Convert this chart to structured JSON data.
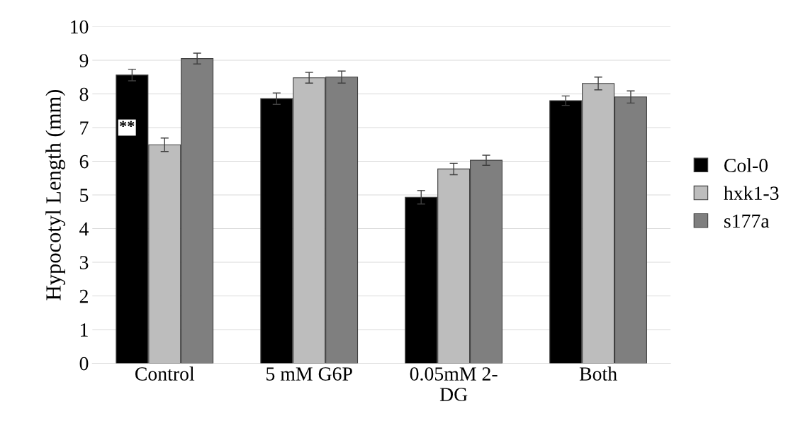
{
  "chart_data": {
    "type": "bar",
    "ylabel": "Hypocotyl Length (mm)",
    "categories": [
      "Control",
      "5 mM G6P",
      "0.05mM 2-\nDG",
      "Both"
    ],
    "series": [
      {
        "name": "Col-0",
        "color": "#000000",
        "values": [
          8.56,
          7.86,
          4.93,
          7.8
        ],
        "errors": [
          0.17,
          0.17,
          0.2,
          0.14
        ]
      },
      {
        "name": "hxk1-3",
        "color": "#bdbdbd",
        "values": [
          6.49,
          8.48,
          5.77,
          8.31
        ],
        "errors": [
          0.2,
          0.16,
          0.17,
          0.19
        ]
      },
      {
        "name": "s177a",
        "color": "#7f7f7f",
        "values": [
          9.05,
          8.5,
          6.03,
          7.91
        ],
        "errors": [
          0.16,
          0.18,
          0.15,
          0.18
        ]
      }
    ],
    "ylim": [
      0,
      10
    ],
    "yticks": [
      0,
      1,
      2,
      3,
      4,
      5,
      6,
      7,
      8,
      9,
      10
    ],
    "grid": "y",
    "legend": "right",
    "annotations": [
      "**"
    ]
  }
}
